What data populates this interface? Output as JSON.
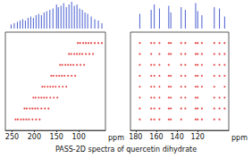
{
  "caption": "PASS-2D spectra of quercetin dihydrate",
  "chart_data": [
    {
      "type": "scatter",
      "xlabel": "ppm",
      "xlim": [
        265,
        40
      ],
      "xticks": [
        250,
        200,
        150,
        100
      ],
      "ylim": [
        0,
        9
      ],
      "tick_labels": "x",
      "grid": false,
      "color": "#e02020",
      "marker": "circle",
      "spectrum": {
        "type": "bar",
        "color": "#4a5fd0",
        "ylim": [
          0,
          1
        ],
        "x": [
          252,
          245,
          238,
          232,
          226,
          220,
          214,
          208,
          202,
          196,
          190,
          184,
          178,
          172,
          165,
          158,
          150,
          146,
          140,
          134,
          128,
          122,
          116,
          110,
          104,
          98,
          92,
          86,
          80,
          72,
          64,
          56,
          48
        ],
        "y": [
          0.15,
          0.2,
          0.25,
          0.3,
          0.35,
          0.3,
          0.4,
          0.45,
          0.4,
          0.5,
          0.55,
          0.5,
          0.6,
          0.65,
          0.7,
          0.75,
          0.9,
          0.8,
          0.85,
          0.95,
          0.8,
          0.9,
          1.0,
          0.85,
          0.9,
          0.75,
          0.7,
          0.6,
          0.55,
          0.45,
          0.35,
          0.3,
          0.2
        ]
      },
      "rows": [
        {
          "y": 8,
          "x": [
            102,
            97,
            90,
            84,
            78,
            72,
            64,
            56,
            48
          ]
        },
        {
          "y": 7,
          "x": [
            122,
            117,
            110,
            104,
            98,
            92,
            84,
            76,
            68
          ]
        },
        {
          "y": 6,
          "x": [
            142,
            137,
            130,
            124,
            118,
            112,
            104,
            96,
            88
          ]
        },
        {
          "y": 5,
          "x": [
            162,
            157,
            150,
            144,
            138,
            132,
            124,
            116,
            108
          ]
        },
        {
          "y": 4,
          "x": [
            182,
            177,
            170,
            164,
            158,
            152,
            144,
            136,
            128
          ]
        },
        {
          "y": 3,
          "x": [
            202,
            197,
            190,
            184,
            178,
            172,
            164,
            156,
            148
          ]
        },
        {
          "y": 2,
          "x": [
            222,
            217,
            210,
            204,
            198,
            192,
            184,
            176,
            168
          ]
        },
        {
          "y": 1,
          "x": [
            242,
            237,
            230,
            224,
            218,
            212,
            204,
            196,
            188
          ]
        }
      ]
    },
    {
      "type": "scatter",
      "xlabel": "ppm",
      "xlim": [
        185,
        90
      ],
      "xticks": [
        180,
        160,
        140,
        120
      ],
      "ylim": [
        0,
        9
      ],
      "tick_labels": "x",
      "grid": false,
      "color": "#e02020",
      "marker": "circle",
      "spectrum": {
        "type": "bar",
        "color": "#4a5fd0",
        "ylim": [
          0,
          1
        ],
        "x": [
          176,
          165,
          162,
          157,
          148,
          146,
          136,
          132,
          122,
          120,
          116,
          104,
          99,
          94
        ],
        "y": [
          0.55,
          0.7,
          0.9,
          0.75,
          0.85,
          0.6,
          0.8,
          0.7,
          0.95,
          0.65,
          0.5,
          0.8,
          0.75,
          0.45
        ]
      },
      "rows": [
        {
          "y": 8,
          "x": [
            176,
            165,
            162,
            157,
            148,
            146,
            136,
            132,
            122,
            120,
            116,
            104,
            99,
            94
          ]
        },
        {
          "y": 7,
          "x": [
            176,
            165,
            157,
            148,
            146,
            136,
            132,
            122,
            120,
            116,
            104,
            99,
            94
          ]
        },
        {
          "y": 6,
          "x": [
            176,
            165,
            162,
            157,
            148,
            136,
            132,
            122,
            120,
            116,
            104,
            99,
            94
          ]
        },
        {
          "y": 5,
          "x": [
            176,
            165,
            162,
            157,
            148,
            146,
            136,
            132,
            122,
            120,
            116,
            104,
            99,
            94
          ]
        },
        {
          "y": 4,
          "x": [
            176,
            165,
            162,
            157,
            148,
            146,
            136,
            132,
            122,
            120,
            116,
            104,
            94
          ]
        },
        {
          "y": 3,
          "x": [
            176,
            165,
            162,
            157,
            148,
            146,
            136,
            132,
            122,
            120,
            104,
            99,
            94
          ]
        },
        {
          "y": 2,
          "x": [
            176,
            165,
            162,
            157,
            148,
            146,
            136,
            132,
            122,
            120,
            116,
            104,
            99,
            94
          ]
        },
        {
          "y": 1,
          "x": [
            176,
            165,
            162,
            157,
            148,
            146,
            136,
            122,
            120,
            116,
            104,
            99
          ]
        }
      ]
    }
  ]
}
